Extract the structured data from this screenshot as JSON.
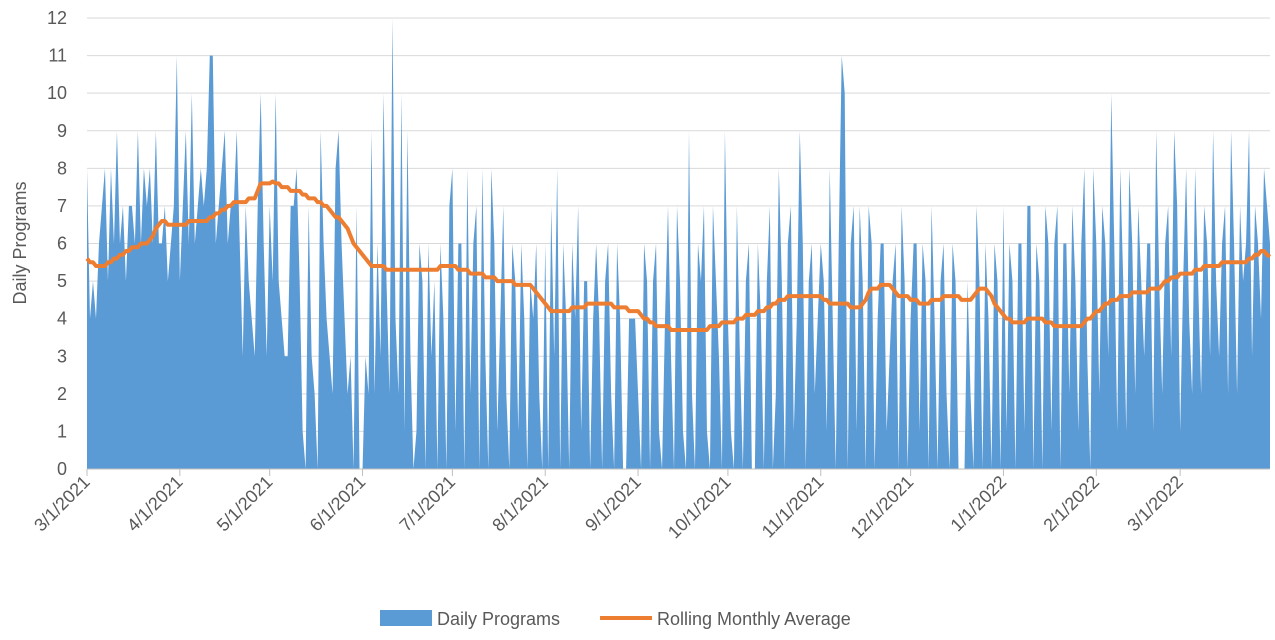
{
  "chart_data": {
    "type": "area",
    "y_label": "Daily Programs",
    "categories": [
      "3/1/2021",
      null,
      null,
      null,
      null,
      null,
      null,
      null,
      null,
      null,
      null,
      null,
      null,
      null,
      null,
      null,
      null,
      null,
      null,
      null,
      null,
      null,
      null,
      null,
      null,
      null,
      null,
      null,
      null,
      null,
      null,
      "4/1/2021",
      null,
      null,
      null,
      null,
      null,
      null,
      null,
      null,
      null,
      null,
      null,
      null,
      null,
      null,
      null,
      null,
      null,
      null,
      null,
      null,
      null,
      null,
      null,
      null,
      null,
      null,
      null,
      null,
      null,
      "5/1/2021",
      null,
      null,
      null,
      null,
      null,
      null,
      null,
      null,
      null,
      null,
      null,
      null,
      null,
      null,
      null,
      null,
      null,
      null,
      null,
      null,
      null,
      null,
      null,
      null,
      null,
      null,
      null,
      null,
      null,
      null,
      "6/1/2021",
      null,
      null,
      null,
      null,
      null,
      null,
      null,
      null,
      null,
      null,
      null,
      null,
      null,
      null,
      null,
      null,
      null,
      null,
      null,
      null,
      null,
      null,
      null,
      null,
      null,
      null,
      null,
      null,
      null,
      "7/1/2021",
      null,
      null,
      null,
      null,
      null,
      null,
      null,
      null,
      null,
      null,
      null,
      null,
      null,
      null,
      null,
      null,
      null,
      null,
      null,
      null,
      null,
      null,
      null,
      null,
      null,
      null,
      null,
      null,
      null,
      null,
      "8/1/2021",
      null,
      null,
      null,
      null,
      null,
      null,
      null,
      null,
      null,
      null,
      null,
      null,
      null,
      null,
      null,
      null,
      null,
      null,
      null,
      null,
      null,
      null,
      null,
      null,
      null,
      null,
      null,
      null,
      null,
      null,
      "9/1/2021",
      null,
      null,
      null,
      null,
      null,
      null,
      null,
      null,
      null,
      null,
      null,
      null,
      null,
      null,
      null,
      null,
      null,
      null,
      null,
      null,
      null,
      null,
      null,
      null,
      null,
      null,
      null,
      null,
      null,
      "10/1/2021",
      null,
      null,
      null,
      null,
      null,
      null,
      null,
      null,
      null,
      null,
      null,
      null,
      null,
      null,
      null,
      null,
      null,
      null,
      null,
      null,
      null,
      null,
      null,
      null,
      null,
      null,
      null,
      null,
      null,
      null,
      "11/1/2021",
      null,
      null,
      null,
      null,
      null,
      null,
      null,
      null,
      null,
      null,
      null,
      null,
      null,
      null,
      null,
      null,
      null,
      null,
      null,
      null,
      null,
      null,
      null,
      null,
      null,
      null,
      null,
      null,
      null,
      "12/1/2021",
      null,
      null,
      null,
      null,
      null,
      null,
      null,
      null,
      null,
      null,
      null,
      null,
      null,
      null,
      null,
      null,
      null,
      null,
      null,
      null,
      null,
      null,
      null,
      null,
      null,
      null,
      null,
      null,
      null,
      null,
      "1/1/2022",
      null,
      null,
      null,
      null,
      null,
      null,
      null,
      null,
      null,
      null,
      null,
      null,
      null,
      null,
      null,
      null,
      null,
      null,
      null,
      null,
      null,
      null,
      null,
      null,
      null,
      null,
      null,
      null,
      null,
      null,
      "2/1/2022",
      null,
      null,
      null,
      null,
      null,
      null,
      null,
      null,
      null,
      null,
      null,
      null,
      null,
      null,
      null,
      null,
      null,
      null,
      null,
      null,
      null,
      null,
      null,
      null,
      null,
      null,
      null,
      "3/1/2022",
      null,
      null,
      null,
      null,
      null,
      null,
      null,
      null,
      null,
      null,
      null,
      null,
      null,
      null,
      null,
      null,
      null,
      null,
      null,
      null,
      null,
      null,
      null,
      null,
      null,
      null,
      null,
      null,
      null,
      null
    ],
    "series": [
      {
        "name": "Daily Programs",
        "type": "area",
        "color": "#5b9bd5",
        "values": [
          8,
          4,
          5,
          4,
          6,
          7,
          8,
          5,
          8,
          6,
          9,
          6,
          7,
          5,
          7,
          7,
          6,
          9,
          6,
          8,
          7,
          8,
          6,
          9,
          6,
          6,
          7,
          5,
          6,
          7,
          11,
          5,
          7,
          9,
          6,
          10,
          6,
          7,
          8,
          7,
          8,
          11,
          11,
          6,
          7,
          8,
          9,
          6,
          7,
          7,
          9,
          6,
          3,
          7,
          5,
          4,
          3,
          7,
          10,
          6,
          3,
          7,
          5,
          10,
          5,
          4,
          3,
          3,
          7,
          7,
          8,
          5,
          1,
          0,
          7,
          3,
          2,
          0,
          9,
          6,
          4,
          3,
          2,
          8,
          9,
          6,
          4,
          2,
          3,
          0,
          7,
          0,
          0,
          3,
          2,
          9,
          2,
          6,
          3,
          10,
          5,
          2,
          12,
          4,
          2,
          10,
          1,
          9,
          3,
          0,
          1,
          6,
          5,
          0,
          6,
          3,
          5,
          0,
          6,
          4,
          0,
          7,
          8,
          1,
          6,
          6,
          0,
          8,
          2,
          6,
          7,
          0,
          8,
          3,
          0,
          8,
          6,
          1,
          4,
          7,
          2,
          0,
          6,
          5,
          1,
          6,
          4,
          0,
          5,
          4,
          6,
          2,
          0,
          6,
          0,
          7,
          3,
          8,
          0,
          6,
          4,
          0,
          6,
          4,
          7,
          1,
          5,
          5,
          0,
          4,
          6,
          4,
          0,
          5,
          6,
          2,
          0,
          6,
          4,
          0,
          0,
          4,
          4,
          4,
          2,
          0,
          6,
          5,
          0,
          5,
          6,
          1,
          0,
          4,
          7,
          3,
          0,
          7,
          5,
          1,
          0,
          9,
          2,
          0,
          6,
          5,
          7,
          1,
          0,
          7,
          5,
          3,
          0,
          9,
          4,
          1,
          0,
          7,
          3,
          0,
          5,
          6,
          0,
          0,
          6,
          4,
          0,
          5,
          7,
          0,
          2,
          8,
          5,
          0,
          6,
          7,
          1,
          4,
          9,
          6,
          0,
          5,
          6,
          2,
          4,
          6,
          5,
          1,
          8,
          4,
          0,
          6,
          11,
          10,
          0,
          6,
          7,
          1,
          7,
          5,
          0,
          7,
          6,
          0,
          4,
          6,
          6,
          1,
          3,
          5,
          6,
          0,
          7,
          5,
          0,
          4,
          6,
          6,
          1,
          6,
          5,
          0,
          7,
          4,
          0,
          5,
          6,
          2,
          0,
          6,
          5,
          0,
          0,
          0,
          5,
          2,
          0,
          7,
          5,
          0,
          6,
          4,
          0,
          6,
          5,
          0,
          7,
          1,
          6,
          5,
          0,
          6,
          6,
          1,
          7,
          7,
          0,
          6,
          5,
          0,
          7,
          6,
          1,
          6,
          7,
          0,
          6,
          6,
          2,
          7,
          5,
          1,
          6,
          8,
          3,
          0,
          8,
          6,
          2,
          7,
          6,
          3,
          10,
          6,
          1,
          8,
          5,
          1,
          8,
          6,
          2,
          7,
          5,
          3,
          6,
          6,
          1,
          9,
          5,
          2,
          6,
          7,
          3,
          9,
          7,
          1,
          5,
          8,
          4,
          2,
          8,
          5,
          2,
          7,
          6,
          3,
          9,
          5,
          3,
          6,
          7,
          2,
          9,
          6,
          2,
          7,
          5,
          6,
          9,
          3,
          7,
          6,
          4,
          8,
          7,
          6
        ]
      },
      {
        "name": "Rolling Monthly Average",
        "type": "line",
        "color": "#ed7d31",
        "values": [
          5.6,
          5.5,
          5.5,
          5.4,
          5.4,
          5.4,
          5.4,
          5.5,
          5.5,
          5.6,
          5.6,
          5.7,
          5.7,
          5.8,
          5.8,
          5.9,
          5.9,
          5.9,
          6.0,
          6.0,
          6.0,
          6.1,
          6.2,
          6.4,
          6.5,
          6.6,
          6.6,
          6.5,
          6.5,
          6.5,
          6.5,
          6.5,
          6.5,
          6.5,
          6.6,
          6.6,
          6.6,
          6.6,
          6.6,
          6.6,
          6.6,
          6.7,
          6.7,
          6.8,
          6.8,
          6.9,
          6.9,
          7.0,
          7.0,
          7.1,
          7.1,
          7.1,
          7.1,
          7.1,
          7.2,
          7.2,
          7.2,
          7.4,
          7.6,
          7.6,
          7.6,
          7.6,
          7.65,
          7.6,
          7.6,
          7.5,
          7.5,
          7.5,
          7.4,
          7.4,
          7.4,
          7.4,
          7.3,
          7.3,
          7.2,
          7.2,
          7.2,
          7.1,
          7.1,
          7.0,
          7.0,
          6.9,
          6.8,
          6.7,
          6.7,
          6.6,
          6.5,
          6.4,
          6.2,
          6.0,
          5.9,
          5.8,
          5.7,
          5.6,
          5.5,
          5.4,
          5.4,
          5.4,
          5.4,
          5.4,
          5.3,
          5.3,
          5.3,
          5.3,
          5.3,
          5.3,
          5.3,
          5.3,
          5.3,
          5.3,
          5.3,
          5.3,
          5.3,
          5.3,
          5.3,
          5.3,
          5.3,
          5.3,
          5.4,
          5.4,
          5.4,
          5.4,
          5.4,
          5.4,
          5.3,
          5.3,
          5.3,
          5.3,
          5.2,
          5.2,
          5.2,
          5.2,
          5.2,
          5.1,
          5.1,
          5.1,
          5.1,
          5.0,
          5.0,
          5.0,
          5.0,
          5.0,
          5.0,
          4.9,
          4.9,
          4.9,
          4.9,
          4.9,
          4.9,
          4.8,
          4.7,
          4.6,
          4.5,
          4.4,
          4.3,
          4.2,
          4.2,
          4.2,
          4.2,
          4.2,
          4.2,
          4.2,
          4.3,
          4.3,
          4.3,
          4.3,
          4.3,
          4.4,
          4.4,
          4.4,
          4.4,
          4.4,
          4.4,
          4.4,
          4.4,
          4.4,
          4.3,
          4.3,
          4.3,
          4.3,
          4.3,
          4.2,
          4.2,
          4.2,
          4.2,
          4.1,
          4.0,
          4.0,
          3.9,
          3.9,
          3.8,
          3.8,
          3.8,
          3.8,
          3.8,
          3.7,
          3.7,
          3.7,
          3.7,
          3.7,
          3.7,
          3.7,
          3.7,
          3.7,
          3.7,
          3.7,
          3.7,
          3.7,
          3.8,
          3.8,
          3.8,
          3.8,
          3.9,
          3.9,
          3.9,
          3.9,
          3.9,
          4.0,
          4.0,
          4.0,
          4.1,
          4.1,
          4.1,
          4.1,
          4.2,
          4.2,
          4.2,
          4.3,
          4.3,
          4.4,
          4.4,
          4.5,
          4.5,
          4.5,
          4.6,
          4.6,
          4.6,
          4.6,
          4.6,
          4.6,
          4.6,
          4.6,
          4.6,
          4.6,
          4.6,
          4.6,
          4.5,
          4.5,
          4.4,
          4.4,
          4.4,
          4.4,
          4.4,
          4.4,
          4.4,
          4.3,
          4.3,
          4.3,
          4.3,
          4.4,
          4.5,
          4.7,
          4.8,
          4.8,
          4.8,
          4.9,
          4.9,
          4.9,
          4.9,
          4.8,
          4.7,
          4.6,
          4.6,
          4.6,
          4.6,
          4.5,
          4.5,
          4.5,
          4.4,
          4.4,
          4.4,
          4.4,
          4.5,
          4.5,
          4.5,
          4.5,
          4.6,
          4.6,
          4.6,
          4.6,
          4.6,
          4.6,
          4.5,
          4.5,
          4.5,
          4.5,
          4.6,
          4.7,
          4.8,
          4.8,
          4.8,
          4.7,
          4.6,
          4.4,
          4.3,
          4.2,
          4.1,
          4.0,
          4.0,
          3.9,
          3.9,
          3.9,
          3.9,
          3.9,
          4.0,
          4.0,
          4.0,
          4.0,
          4.0,
          4.0,
          3.9,
          3.9,
          3.9,
          3.8,
          3.8,
          3.8,
          3.8,
          3.8,
          3.8,
          3.8,
          3.8,
          3.8,
          3.8,
          3.9,
          4.0,
          4.0,
          4.1,
          4.2,
          4.2,
          4.3,
          4.4,
          4.4,
          4.5,
          4.5,
          4.5,
          4.6,
          4.6,
          4.6,
          4.6,
          4.7,
          4.7,
          4.7,
          4.7,
          4.7,
          4.7,
          4.8,
          4.8,
          4.8,
          4.8,
          4.9,
          5.0,
          5.0,
          5.1,
          5.1,
          5.1,
          5.2,
          5.2,
          5.2,
          5.2,
          5.2,
          5.3,
          5.3,
          5.3,
          5.4,
          5.4,
          5.4,
          5.4,
          5.4,
          5.4,
          5.5,
          5.5,
          5.5,
          5.5,
          5.5,
          5.5,
          5.5,
          5.5,
          5.5,
          5.6,
          5.6,
          5.7,
          5.7,
          5.8,
          5.8,
          5.7,
          5.65
        ]
      }
    ],
    "ylim": [
      0,
      12
    ],
    "yticks": [
      0,
      1,
      2,
      3,
      4,
      5,
      6,
      7,
      8,
      9,
      10,
      11,
      12
    ],
    "grid": true,
    "legend": "bottom"
  }
}
